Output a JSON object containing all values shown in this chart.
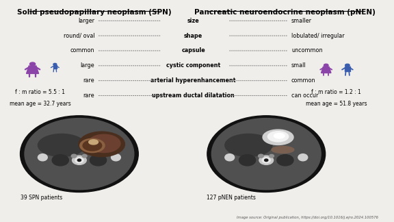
{
  "bg_color": "#f0eeeb",
  "title_spn": "Solid pseudopapillary neoplasm (SPN)",
  "title_pnen": "Pancreatic neuroendocrine neoplasm (pNEN)",
  "spn_ratio": "f : m ratio = 5.5 : 1",
  "spn_age": "mean age = 32.7 years",
  "pnen_ratio": "f : m ratio = 1.2 : 1",
  "pnen_age": "mean age = 51.8 years",
  "spn_patients": "39 SPN patients",
  "pnen_patients": "127 pNEN patients",
  "female_color": "#8B44A8",
  "male_color": "#3A5DAE",
  "rows": [
    {
      "left": "larger",
      "center": "size",
      "right": "smaller"
    },
    {
      "left": "round/ oval",
      "center": "shape",
      "right": "lobulated/ irregular"
    },
    {
      "left": "common",
      "center": "capsule",
      "right": "uncommon"
    },
    {
      "left": "large",
      "center": "cystic component",
      "right": "small"
    },
    {
      "left": "rare",
      "center": "arterial hyperenhancement",
      "right": "common"
    },
    {
      "left": "rare",
      "center": "upstream ductal dilatation",
      "right": "can occur"
    }
  ],
  "source_text": "Image source: Original publication, https://doi.org/10.1016/j.ejro.2024.100576",
  "title_fontsize": 7.5,
  "row_fontsize": 5.8
}
